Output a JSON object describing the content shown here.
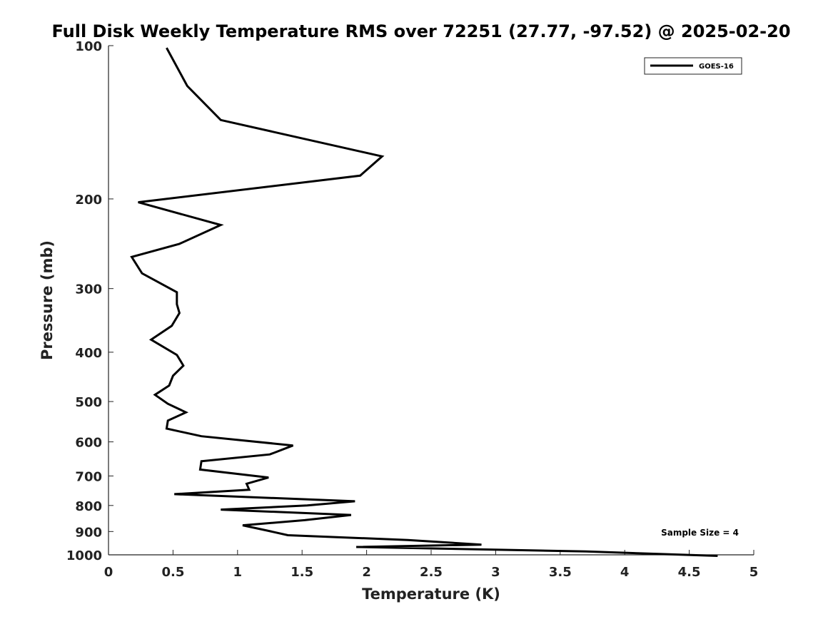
{
  "chart_data": {
    "type": "line",
    "title": "Full Disk Weekly Temperature RMS over 72251 (27.77, -97.52) @ 2025-02-20",
    "xlabel": "Temperature (K)",
    "ylabel": "Pressure (mb)",
    "xlim": [
      0,
      5
    ],
    "ylim": [
      100,
      1000
    ],
    "y_scale": "log",
    "y_reversed": true,
    "x_ticks": [
      "0",
      "0.5",
      "1",
      "1.5",
      "2",
      "2.5",
      "3",
      "3.5",
      "4",
      "4.5",
      "5"
    ],
    "y_ticks": [
      "100",
      "200",
      "300",
      "400",
      "500",
      "600",
      "700",
      "800",
      "900",
      "1000"
    ],
    "grid": false,
    "legend_position": "top-right",
    "annotation": "Sample Size = 4",
    "series": [
      {
        "name": "GOES-16",
        "color": "#000000",
        "x": [
          0.45,
          0.61,
          0.87,
          2.12,
          1.95,
          0.23,
          0.87,
          0.55,
          0.18,
          0.26,
          0.53,
          0.53,
          0.55,
          0.49,
          0.33,
          0.53,
          0.58,
          0.5,
          0.47,
          0.36,
          0.46,
          0.6,
          0.46,
          0.45,
          0.72,
          1.43,
          1.25,
          0.72,
          0.71,
          1.24,
          1.07,
          1.09,
          0.51,
          1.91,
          1.54,
          0.87,
          1.88,
          1.52,
          1.04,
          1.22,
          1.39,
          2.32,
          2.89,
          1.92,
          3.7,
          4.72
        ],
        "y": [
          101,
          120,
          140,
          165,
          180,
          203,
          225,
          245,
          260,
          280,
          305,
          322,
          335,
          355,
          378,
          405,
          425,
          445,
          465,
          485,
          505,
          525,
          545,
          565,
          585,
          610,
          635,
          655,
          680,
          705,
          725,
          745,
          760,
          785,
          800,
          815,
          835,
          855,
          875,
          895,
          915,
          935,
          955,
          965,
          985,
          1005
        ]
      }
    ]
  }
}
